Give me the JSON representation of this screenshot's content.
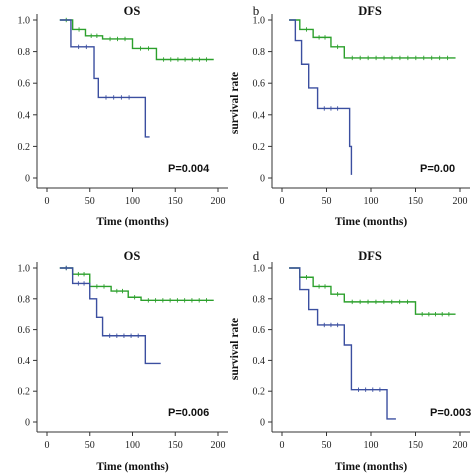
{
  "chart_data": [
    {
      "type": "line",
      "panel": "a",
      "letter": "",
      "title": "OS",
      "xlabel": "Time (months)",
      "ylabel": "",
      "xlim": [
        0,
        200
      ],
      "ylim": [
        0,
        1.0
      ],
      "xticks": [
        "0",
        "50",
        "100",
        "150",
        "200"
      ],
      "yticks": [
        "0",
        "0.2",
        "0.4",
        "0.6",
        "0.8",
        "1.0"
      ],
      "annotation": "P=0.004",
      "colors": {
        "green": "#2ca02c",
        "blue": "#3b4fa0"
      },
      "series": [
        {
          "color": "green",
          "x": [
            15,
            30,
            45,
            65,
            100,
            128,
            195
          ],
          "y": [
            1.0,
            0.94,
            0.9,
            0.88,
            0.82,
            0.75,
            0.75
          ]
        },
        {
          "color": "blue",
          "x": [
            15,
            28,
            55,
            60,
            105,
            115,
            120
          ],
          "y": [
            1.0,
            0.83,
            0.63,
            0.51,
            0.51,
            0.26,
            0.26
          ]
        }
      ]
    },
    {
      "type": "line",
      "panel": "b",
      "letter": "b",
      "title": "DFS",
      "xlabel": "Time (months)",
      "ylabel": "survival rate",
      "xlim": [
        0,
        200
      ],
      "ylim": [
        0,
        1.0
      ],
      "xticks": [
        "0",
        "50",
        "100",
        "150",
        "200"
      ],
      "yticks": [
        "0",
        "0.2",
        "0.4",
        "0.6",
        "0.8",
        "1.0"
      ],
      "annotation": "P=0.00",
      "colors": {
        "green": "#2ca02c",
        "blue": "#3b4fa0"
      },
      "series": [
        {
          "color": "green",
          "x": [
            8,
            20,
            35,
            55,
            70,
            195
          ],
          "y": [
            1.0,
            0.94,
            0.89,
            0.83,
            0.76,
            0.76
          ]
        },
        {
          "color": "blue",
          "x": [
            8,
            15,
            22,
            30,
            40,
            70,
            76,
            78
          ],
          "y": [
            1.0,
            0.87,
            0.72,
            0.57,
            0.44,
            0.44,
            0.2,
            0.02
          ]
        }
      ]
    },
    {
      "type": "line",
      "panel": "c",
      "letter": "",
      "title": "OS",
      "xlabel": "Time (months)",
      "ylabel": "",
      "xlim": [
        0,
        200
      ],
      "ylim": [
        0,
        1.0
      ],
      "xticks": [
        "0",
        "50",
        "100",
        "150",
        "200"
      ],
      "yticks": [
        "0",
        "0.2",
        "0.4",
        "0.6",
        "0.8",
        "1.0"
      ],
      "annotation": "P=0.006",
      "colors": {
        "green": "#2ca02c",
        "blue": "#3b4fa0"
      },
      "series": [
        {
          "color": "green",
          "x": [
            15,
            30,
            50,
            75,
            95,
            110,
            195
          ],
          "y": [
            1.0,
            0.96,
            0.88,
            0.85,
            0.81,
            0.79,
            0.79
          ]
        },
        {
          "color": "blue",
          "x": [
            15,
            30,
            50,
            58,
            65,
            115,
            125,
            133
          ],
          "y": [
            1.0,
            0.9,
            0.8,
            0.68,
            0.56,
            0.38,
            0.38,
            0.38
          ]
        }
      ]
    },
    {
      "type": "line",
      "panel": "d",
      "letter": "d",
      "title": "DFS",
      "xlabel": "Time (months)",
      "ylabel": "survival rate",
      "xlim": [
        0,
        200
      ],
      "ylim": [
        0,
        1.0
      ],
      "xticks": [
        "0",
        "50",
        "100",
        "150",
        "200"
      ],
      "yticks": [
        "0",
        "0.2",
        "0.4",
        "0.6",
        "0.8",
        "1.0"
      ],
      "annotation": "P=0.003",
      "colors": {
        "green": "#2ca02c",
        "blue": "#3b4fa0"
      },
      "series": [
        {
          "color": "green",
          "x": [
            8,
            20,
            35,
            55,
            70,
            150,
            195
          ],
          "y": [
            1.0,
            0.94,
            0.88,
            0.83,
            0.78,
            0.7,
            0.7
          ]
        },
        {
          "color": "blue",
          "x": [
            8,
            20,
            30,
            40,
            70,
            78,
            118,
            128
          ],
          "y": [
            1.0,
            0.86,
            0.73,
            0.63,
            0.5,
            0.21,
            0.02,
            0.02
          ]
        }
      ]
    }
  ]
}
